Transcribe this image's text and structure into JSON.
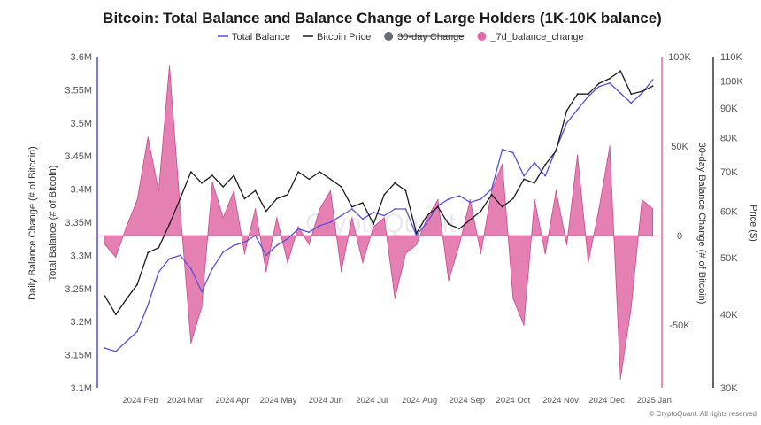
{
  "chart_data": {
    "type": "line",
    "title": "Bitcoin: Total Balance and Balance Change of Large Holders (1K-10K balance)",
    "legend": [
      {
        "name": "Total Balance",
        "marker": "line",
        "color": "#5b4fd8",
        "struck": false
      },
      {
        "name": "Bitcoin Price",
        "marker": "line",
        "color": "#1a1a1a",
        "struck": false
      },
      {
        "name": "30-day Change",
        "marker": "dot",
        "color": "#6b6b78",
        "struck": true
      },
      {
        "name": "_7d_balance_change",
        "marker": "dot",
        "color": "#e06aa6",
        "struck": false
      }
    ],
    "legend_placement": "top-center",
    "x_ticks": [
      "2024 Feb",
      "2024 Mar",
      "2024 Apr",
      "2024 May",
      "2024 Jun",
      "2024 Jul",
      "2024 Aug",
      "2024 Sep",
      "2024 Oct",
      "2024 Nov",
      "2024 Dec",
      "2025 Jan"
    ],
    "axes": {
      "left_outer": {
        "label": "Daily Balance Change (# of Bitcoin)"
      },
      "left_inner": {
        "label": "Total Balance (# of Bitcoin)",
        "ticks": [
          "3.1M",
          "3.15M",
          "3.2M",
          "3.25M",
          "3.3M",
          "3.35M",
          "3.4M",
          "3.45M",
          "3.5M",
          "3.55M",
          "3.6M"
        ],
        "range": [
          3100000,
          3600000
        ]
      },
      "right_inner": {
        "label": "30-day Balance Change (# of Bitcoin)",
        "ticks": [
          "-50K",
          "0",
          "50K",
          "100K"
        ],
        "range": [
          -85000,
          100000
        ]
      },
      "right_outer": {
        "label": "Price ($)",
        "scale": "log",
        "ticks": [
          "30K",
          "40K",
          "50K",
          "60K",
          "70K",
          "80K",
          "90K",
          "100K",
          "110K"
        ],
        "range": [
          30000,
          110000
        ]
      }
    },
    "grid": false,
    "series": [
      {
        "name": "Total Balance",
        "axis": "left_inner",
        "color": "#5b4fd8",
        "x": [
          "2024-01-15",
          "2024-01-22",
          "2024-01-29",
          "2024-02-05",
          "2024-02-12",
          "2024-02-19",
          "2024-02-26",
          "2024-03-04",
          "2024-03-11",
          "2024-03-18",
          "2024-03-25",
          "2024-04-01",
          "2024-04-08",
          "2024-04-15",
          "2024-04-22",
          "2024-04-29",
          "2024-05-06",
          "2024-05-13",
          "2024-05-20",
          "2024-05-27",
          "2024-06-03",
          "2024-06-10",
          "2024-06-17",
          "2024-06-24",
          "2024-07-01",
          "2024-07-08",
          "2024-07-15",
          "2024-07-22",
          "2024-07-29",
          "2024-08-05",
          "2024-08-12",
          "2024-08-19",
          "2024-08-26",
          "2024-09-02",
          "2024-09-09",
          "2024-09-16",
          "2024-09-23",
          "2024-09-30",
          "2024-10-07",
          "2024-10-14",
          "2024-10-21",
          "2024-10-28",
          "2024-11-04",
          "2024-11-11",
          "2024-11-18",
          "2024-11-25",
          "2024-12-02",
          "2024-12-09",
          "2024-12-16",
          "2024-12-23",
          "2024-12-30",
          "2025-01-06"
        ],
        "values": [
          3160000,
          3155000,
          3170000,
          3185000,
          3225000,
          3275000,
          3295000,
          3300000,
          3280000,
          3245000,
          3280000,
          3305000,
          3315000,
          3320000,
          3330000,
          3300000,
          3315000,
          3325000,
          3340000,
          3335000,
          3345000,
          3350000,
          3360000,
          3370000,
          3355000,
          3365000,
          3360000,
          3370000,
          3370000,
          3330000,
          3350000,
          3375000,
          3385000,
          3390000,
          3380000,
          3385000,
          3400000,
          3460000,
          3455000,
          3420000,
          3440000,
          3420000,
          3460000,
          3500000,
          3520000,
          3540000,
          3555000,
          3560000,
          3545000,
          3530000,
          3545000,
          3565000
        ]
      },
      {
        "name": "Bitcoin Price",
        "axis": "right_outer",
        "color": "#1a1a1a",
        "x": [
          "2024-01-15",
          "2024-01-22",
          "2024-01-29",
          "2024-02-05",
          "2024-02-12",
          "2024-02-19",
          "2024-02-26",
          "2024-03-04",
          "2024-03-11",
          "2024-03-18",
          "2024-03-25",
          "2024-04-01",
          "2024-04-08",
          "2024-04-15",
          "2024-04-22",
          "2024-04-29",
          "2024-05-06",
          "2024-05-13",
          "2024-05-20",
          "2024-05-27",
          "2024-06-03",
          "2024-06-10",
          "2024-06-17",
          "2024-06-24",
          "2024-07-01",
          "2024-07-08",
          "2024-07-15",
          "2024-07-22",
          "2024-07-29",
          "2024-08-05",
          "2024-08-12",
          "2024-08-19",
          "2024-08-26",
          "2024-09-02",
          "2024-09-09",
          "2024-09-16",
          "2024-09-23",
          "2024-09-30",
          "2024-10-07",
          "2024-10-14",
          "2024-10-21",
          "2024-10-28",
          "2024-11-04",
          "2024-11-11",
          "2024-11-18",
          "2024-11-25",
          "2024-12-02",
          "2024-12-09",
          "2024-12-16",
          "2024-12-23",
          "2024-12-30",
          "2025-01-06"
        ],
        "values": [
          43000,
          40000,
          42500,
          45000,
          51000,
          52000,
          57000,
          63000,
          70000,
          67000,
          69000,
          66000,
          69000,
          63000,
          65000,
          60000,
          63000,
          64000,
          70000,
          68000,
          70000,
          68000,
          66000,
          61000,
          62000,
          57000,
          64000,
          67000,
          65000,
          55000,
          59000,
          61000,
          57000,
          56000,
          58000,
          60000,
          64000,
          61000,
          63000,
          68000,
          67000,
          72000,
          76000,
          89000,
          95000,
          95000,
          99000,
          101000,
          104000,
          95000,
          96000,
          98000
        ]
      },
      {
        "name": "_7d_balance_change",
        "axis": "right_inner",
        "color": "#e06aa6",
        "x": [
          "2024-01-15",
          "2024-01-22",
          "2024-01-29",
          "2024-02-05",
          "2024-02-12",
          "2024-02-19",
          "2024-02-26",
          "2024-03-04",
          "2024-03-11",
          "2024-03-18",
          "2024-03-25",
          "2024-04-01",
          "2024-04-08",
          "2024-04-15",
          "2024-04-22",
          "2024-04-29",
          "2024-05-06",
          "2024-05-13",
          "2024-05-20",
          "2024-05-27",
          "2024-06-03",
          "2024-06-10",
          "2024-06-17",
          "2024-06-24",
          "2024-07-01",
          "2024-07-08",
          "2024-07-15",
          "2024-07-22",
          "2024-07-29",
          "2024-08-05",
          "2024-08-12",
          "2024-08-19",
          "2024-08-26",
          "2024-09-02",
          "2024-09-09",
          "2024-09-16",
          "2024-09-23",
          "2024-09-30",
          "2024-10-07",
          "2024-10-14",
          "2024-10-21",
          "2024-10-28",
          "2024-11-04",
          "2024-11-11",
          "2024-11-18",
          "2024-11-25",
          "2024-12-02",
          "2024-12-09",
          "2024-12-16",
          "2024-12-23",
          "2024-12-30",
          "2025-01-06"
        ],
        "values": [
          -5000,
          -12000,
          5000,
          20000,
          55000,
          25000,
          95000,
          15000,
          -60000,
          -40000,
          30000,
          10000,
          25000,
          -10000,
          15000,
          -20000,
          10000,
          -15000,
          5000,
          -5000,
          15000,
          25000,
          -20000,
          10000,
          -15000,
          5000,
          10000,
          -35000,
          -10000,
          -5000,
          10000,
          20000,
          -25000,
          -5000,
          20000,
          -10000,
          25000,
          40000,
          -35000,
          -50000,
          20000,
          -10000,
          25000,
          -5000,
          45000,
          -15000,
          15000,
          50000,
          -80000,
          -40000,
          20000,
          15000
        ]
      }
    ]
  },
  "watermark": "CryptoQuant",
  "credit": "© CryptoQuant. All rights reserved"
}
